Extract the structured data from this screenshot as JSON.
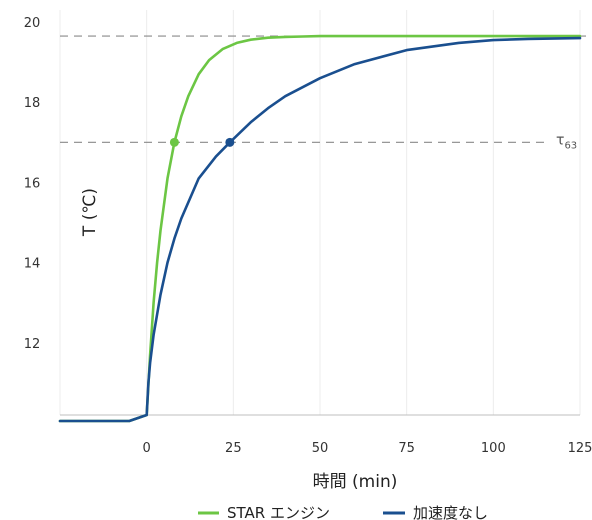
{
  "chart_data": {
    "type": "line",
    "xlabel": "時間 (min)",
    "ylabel": "T (℃)",
    "xlim": [
      -25,
      125
    ],
    "ylim": [
      10.2,
      20.3
    ],
    "x_ticks": [
      0,
      25,
      50,
      75,
      100,
      125
    ],
    "y_ticks": [
      12,
      14,
      16,
      18,
      20
    ],
    "grid": "vertical",
    "legend_position": "bottom",
    "series": [
      {
        "name": "STAR エンジン",
        "color": "#6cc644",
        "x": [
          -25,
          -5,
          0,
          1,
          2,
          3,
          4,
          6,
          8,
          10,
          12,
          15,
          18,
          22,
          26,
          30,
          35,
          40,
          45,
          50,
          60,
          75,
          100,
          125
        ],
        "y": [
          10.05,
          10.05,
          10.2,
          11.7,
          13.0,
          14.0,
          14.8,
          16.1,
          17.0,
          17.65,
          18.15,
          18.7,
          19.05,
          19.33,
          19.48,
          19.56,
          19.61,
          19.63,
          19.64,
          19.65,
          19.65,
          19.65,
          19.65,
          19.65
        ]
      },
      {
        "name": "加速度なし",
        "color": "#1a4f8f",
        "x": [
          -25,
          -5,
          0,
          0.5,
          1,
          2,
          4,
          6,
          8,
          10,
          15,
          20,
          24,
          30,
          35,
          40,
          50,
          60,
          75,
          90,
          100,
          110,
          125
        ],
        "y": [
          10.05,
          10.05,
          10.2,
          11.0,
          11.5,
          12.2,
          13.2,
          14.0,
          14.6,
          15.1,
          16.1,
          16.65,
          17.0,
          17.5,
          17.85,
          18.15,
          18.6,
          18.95,
          19.3,
          19.48,
          19.55,
          19.58,
          19.6
        ]
      }
    ],
    "markers": [
      {
        "series": "STAR エンジン",
        "x": 8,
        "y": 17.0
      },
      {
        "series": "加速度なし",
        "x": 24,
        "y": 17.0
      }
    ],
    "reference_lines": [
      {
        "y": 19.65,
        "label": ""
      },
      {
        "y": 17.0,
        "label": "τ",
        "label_sub": "63"
      }
    ]
  }
}
